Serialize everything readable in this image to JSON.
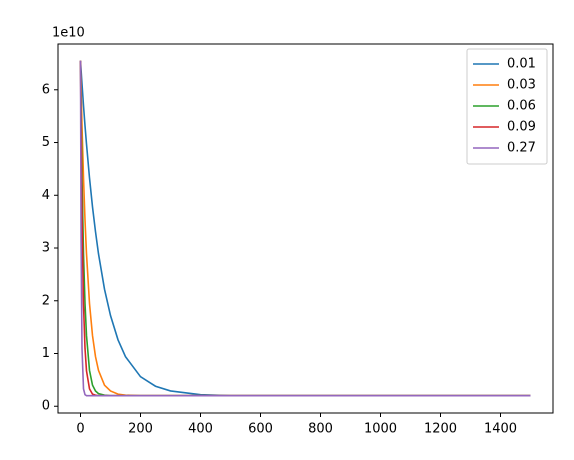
{
  "chart_data": {
    "type": "line",
    "y_offset_label": "1e10",
    "x": [
      0,
      2,
      5,
      10,
      15,
      20,
      30,
      40,
      50,
      60,
      80,
      100,
      125,
      150,
      200,
      250,
      300,
      400,
      500,
      1000,
      1500
    ],
    "series": [
      {
        "name": "0.01",
        "color": "#1f77b4",
        "values": [
          6.55,
          6.37,
          6.11,
          5.7,
          5.32,
          4.97,
          4.33,
          3.78,
          3.31,
          2.89,
          2.22,
          1.72,
          1.26,
          0.94,
          0.56,
          0.38,
          0.29,
          0.22,
          0.2,
          0.2,
          0.2
        ]
      },
      {
        "name": "0.03",
        "color": "#ff7f0e",
        "values": [
          6.55,
          6.03,
          5.32,
          4.33,
          3.53,
          2.89,
          1.95,
          1.34,
          0.94,
          0.68,
          0.4,
          0.29,
          0.23,
          0.21,
          0.2,
          0.2,
          0.2,
          0.2,
          0.2,
          0.2,
          0.2
        ]
      },
      {
        "name": "0.06",
        "color": "#2ca02c",
        "values": [
          6.55,
          5.55,
          4.33,
          2.89,
          1.95,
          1.34,
          0.68,
          0.4,
          0.29,
          0.24,
          0.21,
          0.2,
          0.2,
          0.2,
          0.2,
          0.2,
          0.2,
          0.2,
          0.2,
          0.2,
          0.2
        ]
      },
      {
        "name": "0.09",
        "color": "#d62728",
        "values": [
          6.55,
          5.1,
          3.51,
          1.93,
          1.1,
          0.67,
          0.33,
          0.23,
          0.21,
          0.2,
          0.2,
          0.2,
          0.2,
          0.2,
          0.2,
          0.2,
          0.2,
          0.2,
          0.2,
          0.2,
          0.2
        ]
      },
      {
        "name": "0.27",
        "color": "#9467bd",
        "values": [
          6.55,
          3.11,
          1.1,
          0.33,
          0.22,
          0.2,
          0.2,
          0.2,
          0.2,
          0.2,
          0.2,
          0.2,
          0.2,
          0.2,
          0.2,
          0.2,
          0.2,
          0.2,
          0.2,
          0.2,
          0.2
        ]
      }
    ],
    "xlim": [
      -75,
      1575
    ],
    "ylim": [
      -0.128,
      6.868
    ],
    "xticks": [
      0,
      200,
      400,
      600,
      800,
      1000,
      1200,
      1400
    ],
    "yticks": [
      0,
      1,
      2,
      3,
      4,
      5,
      6
    ],
    "legend": "upper-right"
  }
}
